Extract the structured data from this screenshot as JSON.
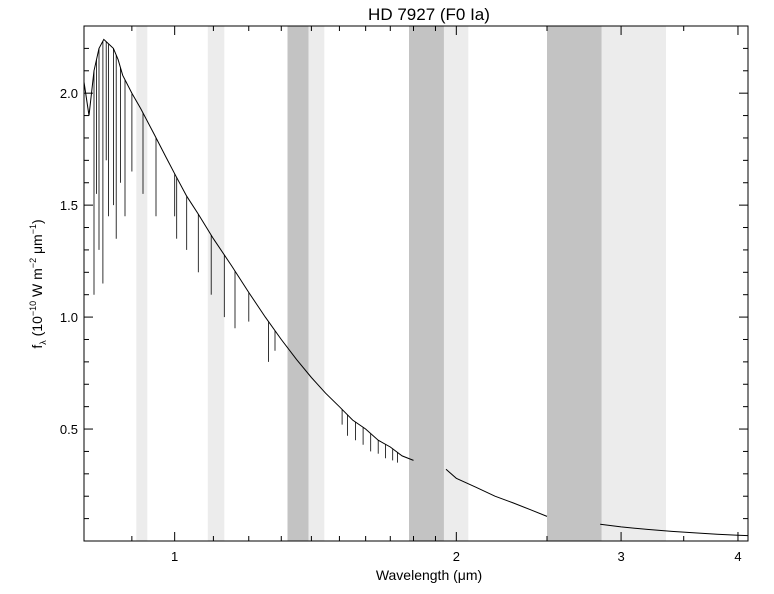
{
  "chart_data": {
    "type": "line",
    "title": "HD 7927 (F0 Ia)",
    "xlabel": "Wavelength (μm)",
    "ylabel": {
      "base": "f",
      "sub": "λ",
      "open": " (10",
      "exp1": "−10",
      "mid1": " W m",
      "exp2": "−2",
      "mid2": " μm",
      "exp3": "−1",
      "close": ")"
    },
    "xscale": "log",
    "xlim": [
      0.8,
      4.1
    ],
    "ylim": [
      0.0,
      2.3
    ],
    "x_ticks": [
      {
        "value": 1,
        "label": "1"
      },
      {
        "value": 2,
        "label": "2"
      },
      {
        "value": 3,
        "label": "3"
      },
      {
        "value": 4,
        "label": "4"
      }
    ],
    "y_ticks": [
      {
        "value": 0.5,
        "label": "0.5"
      },
      {
        "value": 1.0,
        "label": "1.0"
      },
      {
        "value": 1.5,
        "label": "1.5"
      },
      {
        "value": 2.0,
        "label": "2.0"
      }
    ],
    "bands": [
      {
        "x0": 0.91,
        "x1": 0.935,
        "shade": "light"
      },
      {
        "x0": 1.085,
        "x1": 1.13,
        "shade": "light"
      },
      {
        "x0": 1.32,
        "x1": 1.39,
        "shade": "dark"
      },
      {
        "x0": 1.39,
        "x1": 1.445,
        "shade": "light"
      },
      {
        "x0": 1.78,
        "x1": 1.94,
        "shade": "dark"
      },
      {
        "x0": 1.94,
        "x1": 2.06,
        "shade": "light"
      },
      {
        "x0": 2.5,
        "x1": 2.86,
        "shade": "dark"
      },
      {
        "x0": 2.86,
        "x1": 3.35,
        "shade": "light"
      }
    ],
    "band_colors": {
      "light": "#ececec",
      "dark": "#c3c3c3"
    },
    "line_color": "#000000",
    "series": [
      {
        "x": [
          0.8,
          0.81,
          0.82,
          0.83,
          0.84,
          0.85,
          0.86,
          0.87,
          0.88,
          0.9,
          0.92,
          0.95,
          0.98,
          1.0,
          1.03,
          1.06,
          1.1,
          1.15,
          1.2,
          1.25,
          1.3,
          1.35,
          1.4,
          1.45,
          1.5,
          1.55,
          1.6,
          1.65,
          1.7,
          1.75,
          1.8
        ],
        "y": [
          2.05,
          1.9,
          2.1,
          2.2,
          2.24,
          2.22,
          2.2,
          2.15,
          2.08,
          2.0,
          1.93,
          1.82,
          1.71,
          1.64,
          1.54,
          1.46,
          1.35,
          1.23,
          1.11,
          1.0,
          0.9,
          0.81,
          0.73,
          0.66,
          0.6,
          0.54,
          0.5,
          0.45,
          0.42,
          0.38,
          0.36
        ]
      },
      {
        "x": [
          1.95,
          2.0,
          2.1,
          2.2,
          2.3,
          2.4,
          2.5
        ],
        "y": [
          0.32,
          0.28,
          0.24,
          0.2,
          0.17,
          0.14,
          0.11
        ]
      },
      {
        "x": [
          2.85,
          3.0,
          3.2,
          3.4,
          3.6,
          3.8,
          4.0,
          4.1
        ],
        "y": [
          0.075,
          0.063,
          0.052,
          0.043,
          0.036,
          0.03,
          0.026,
          0.024
        ]
      }
    ],
    "absorption_lines": [
      {
        "x": 0.82,
        "y": 1.1
      },
      {
        "x": 0.825,
        "y": 1.55
      },
      {
        "x": 0.83,
        "y": 1.3
      },
      {
        "x": 0.838,
        "y": 1.15
      },
      {
        "x": 0.845,
        "y": 1.7
      },
      {
        "x": 0.85,
        "y": 1.45
      },
      {
        "x": 0.86,
        "y": 1.5
      },
      {
        "x": 0.866,
        "y": 1.35
      },
      {
        "x": 0.875,
        "y": 1.6
      },
      {
        "x": 0.885,
        "y": 1.45
      },
      {
        "x": 0.9,
        "y": 1.65
      },
      {
        "x": 0.925,
        "y": 1.55
      },
      {
        "x": 0.955,
        "y": 1.45
      },
      {
        "x": 1.0,
        "y": 1.45
      },
      {
        "x": 1.005,
        "y": 1.35
      },
      {
        "x": 1.03,
        "y": 1.3
      },
      {
        "x": 1.06,
        "y": 1.2
      },
      {
        "x": 1.094,
        "y": 1.1
      },
      {
        "x": 1.13,
        "y": 1.0
      },
      {
        "x": 1.16,
        "y": 0.95
      },
      {
        "x": 1.2,
        "y": 0.98
      },
      {
        "x": 1.26,
        "y": 0.8
      },
      {
        "x": 1.28,
        "y": 0.85
      },
      {
        "x": 1.51,
        "y": 0.52
      },
      {
        "x": 1.53,
        "y": 0.47
      },
      {
        "x": 1.56,
        "y": 0.45
      },
      {
        "x": 1.59,
        "y": 0.43
      },
      {
        "x": 1.62,
        "y": 0.4
      },
      {
        "x": 1.65,
        "y": 0.39
      },
      {
        "x": 1.68,
        "y": 0.37
      },
      {
        "x": 1.71,
        "y": 0.36
      },
      {
        "x": 1.73,
        "y": 0.35
      }
    ]
  }
}
